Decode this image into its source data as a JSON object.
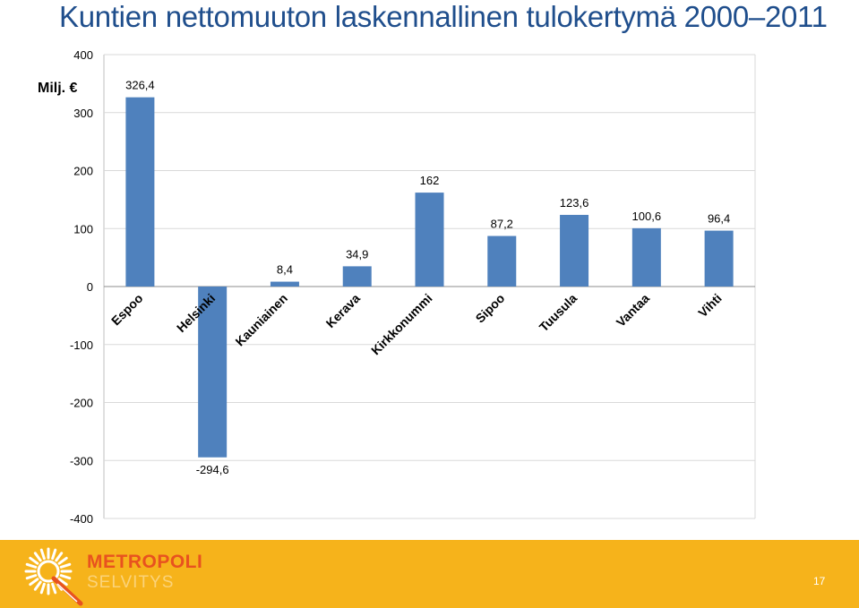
{
  "header": {
    "title": "Kuntien nettomuuton laskennallinen tulokertymä 2000–2011"
  },
  "chart_data": {
    "type": "bar",
    "title": "Kuntien nettomuuton laskennallinen tulokertymä 2000–2011",
    "unit_label": "Milj. €",
    "categories": [
      "Espoo",
      "Helsinki",
      "Kauniainen",
      "Kerava",
      "Kirkkonummi",
      "Sipoo",
      "Tuusula",
      "Vantaa",
      "Vihti"
    ],
    "values": [
      326.4,
      -294.6,
      8.4,
      34.9,
      162,
      87.2,
      123.6,
      100.6,
      96.4
    ],
    "value_labels": [
      "326,4",
      "-294,6",
      "8,4",
      "34,9",
      "162",
      "87,2",
      "123,6",
      "100,6",
      "96,4"
    ],
    "ylim": [
      -400,
      400
    ],
    "yticks": [
      400,
      300,
      200,
      100,
      0,
      -100,
      -200,
      -300,
      -400
    ],
    "grid": true,
    "bar_color": "#4f81bd"
  },
  "footer": {
    "brand_line1": "METROPOLI",
    "brand_line2": "SELVITYS",
    "page_number": "17",
    "logo_icon": "sun-q-icon"
  }
}
